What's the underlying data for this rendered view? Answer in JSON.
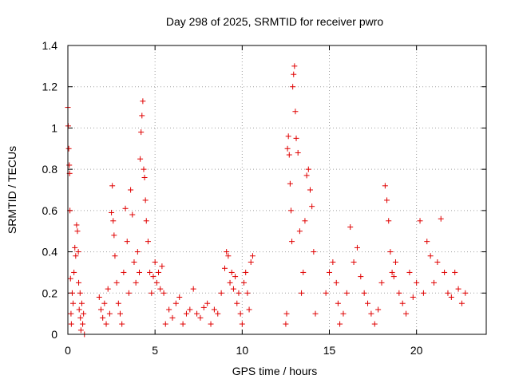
{
  "chart_data": {
    "type": "scatter",
    "title": "Day 298 of 2025, SRMTID for receiver pwro",
    "xlabel": "GPS time / hours",
    "ylabel": "SRMTID / TECUs",
    "xlim": [
      0,
      24
    ],
    "ylim": [
      0,
      1.4
    ],
    "xticks": [
      0,
      5,
      10,
      15,
      20
    ],
    "xtick_labels": [
      "0",
      "5",
      "10",
      "15",
      "20"
    ],
    "yticks": [
      0,
      0.2,
      0.4,
      0.6,
      0.8,
      1.0,
      1.2,
      1.4
    ],
    "ytick_labels": [
      "0",
      "0.2",
      "0.4",
      "0.6",
      "0.8",
      "1",
      "1.2",
      "1.4"
    ],
    "grid": true,
    "marker": "+",
    "color": "#e00000",
    "series": [
      {
        "name": "SRMTID",
        "x": [
          0.0,
          0.02,
          0.05,
          0.08,
          0.1,
          0.12,
          0.15,
          0.18,
          0.2,
          0.25,
          0.3,
          0.35,
          0.4,
          0.45,
          0.5,
          0.55,
          0.6,
          0.62,
          0.65,
          0.7,
          0.72,
          0.75,
          0.8,
          0.85,
          0.9,
          0.95,
          1.8,
          1.9,
          2.0,
          2.1,
          2.2,
          2.3,
          2.4,
          2.5,
          2.55,
          2.6,
          2.65,
          2.7,
          2.8,
          2.9,
          3.0,
          3.1,
          3.2,
          3.3,
          3.4,
          3.5,
          3.6,
          3.7,
          3.8,
          3.9,
          4.0,
          4.1,
          4.15,
          4.2,
          4.25,
          4.3,
          4.35,
          4.4,
          4.45,
          4.5,
          4.6,
          4.7,
          4.8,
          4.9,
          5.0,
          5.1,
          5.2,
          5.3,
          5.4,
          5.5,
          5.6,
          5.8,
          6.0,
          6.2,
          6.4,
          6.6,
          6.8,
          7.0,
          7.2,
          7.4,
          7.6,
          7.8,
          8.0,
          8.2,
          8.4,
          8.6,
          8.8,
          9.0,
          9.1,
          9.2,
          9.3,
          9.4,
          9.5,
          9.6,
          9.7,
          9.8,
          9.9,
          10.0,
          10.1,
          10.2,
          10.3,
          10.4,
          10.5,
          10.6,
          12.5,
          12.55,
          12.6,
          12.65,
          12.7,
          12.75,
          12.8,
          12.85,
          12.9,
          12.95,
          13.0,
          13.05,
          13.1,
          13.2,
          13.3,
          13.4,
          13.5,
          13.6,
          13.7,
          13.8,
          13.9,
          14.0,
          14.1,
          14.2,
          14.8,
          15.0,
          15.2,
          15.4,
          15.5,
          15.6,
          15.8,
          16.0,
          16.2,
          16.4,
          16.6,
          16.8,
          17.0,
          17.2,
          17.4,
          17.6,
          17.8,
          18.0,
          18.2,
          18.3,
          18.4,
          18.5,
          18.6,
          18.7,
          18.8,
          19.0,
          19.2,
          19.4,
          19.6,
          19.8,
          20.0,
          20.2,
          20.4,
          20.6,
          20.8,
          21.0,
          21.2,
          21.4,
          21.6,
          21.8,
          22.0,
          22.2,
          22.4,
          22.6,
          22.8
        ],
        "y": [
          1.1,
          1.01,
          0.9,
          0.82,
          0.78,
          0.6,
          0.27,
          0.1,
          0.05,
          0.2,
          0.15,
          0.3,
          0.42,
          0.38,
          0.53,
          0.5,
          0.4,
          0.25,
          0.12,
          0.2,
          0.08,
          0.02,
          0.15,
          0.05,
          0.1,
          0.0,
          0.18,
          0.12,
          0.08,
          0.15,
          0.05,
          0.22,
          0.1,
          0.59,
          0.72,
          0.55,
          0.48,
          0.38,
          0.25,
          0.15,
          0.1,
          0.05,
          0.3,
          0.61,
          0.45,
          0.2,
          0.7,
          0.58,
          0.35,
          0.25,
          0.4,
          0.3,
          0.85,
          0.98,
          1.06,
          1.13,
          0.8,
          0.76,
          0.65,
          0.55,
          0.45,
          0.3,
          0.2,
          0.28,
          0.35,
          0.25,
          0.3,
          0.22,
          0.33,
          0.2,
          0.05,
          0.12,
          0.08,
          0.15,
          0.18,
          0.05,
          0.1,
          0.12,
          0.22,
          0.1,
          0.08,
          0.13,
          0.15,
          0.05,
          0.12,
          0.1,
          0.2,
          0.32,
          0.4,
          0.38,
          0.25,
          0.3,
          0.22,
          0.28,
          0.15,
          0.2,
          0.1,
          0.05,
          0.25,
          0.3,
          0.2,
          0.12,
          0.35,
          0.38,
          0.05,
          0.1,
          0.9,
          0.96,
          0.87,
          0.73,
          0.6,
          0.45,
          1.2,
          1.26,
          1.3,
          1.08,
          0.95,
          0.88,
          0.5,
          0.2,
          0.3,
          0.55,
          0.77,
          0.8,
          0.7,
          0.62,
          0.4,
          0.1,
          0.2,
          0.3,
          0.35,
          0.25,
          0.15,
          0.05,
          0.1,
          0.2,
          0.52,
          0.35,
          0.42,
          0.28,
          0.2,
          0.15,
          0.1,
          0.05,
          0.12,
          0.25,
          0.72,
          0.65,
          0.55,
          0.4,
          0.3,
          0.28,
          0.35,
          0.2,
          0.15,
          0.1,
          0.3,
          0.18,
          0.25,
          0.55,
          0.2,
          0.45,
          0.38,
          0.25,
          0.35,
          0.56,
          0.3,
          0.2,
          0.18,
          0.3,
          0.22,
          0.15,
          0.2
        ]
      }
    ]
  }
}
